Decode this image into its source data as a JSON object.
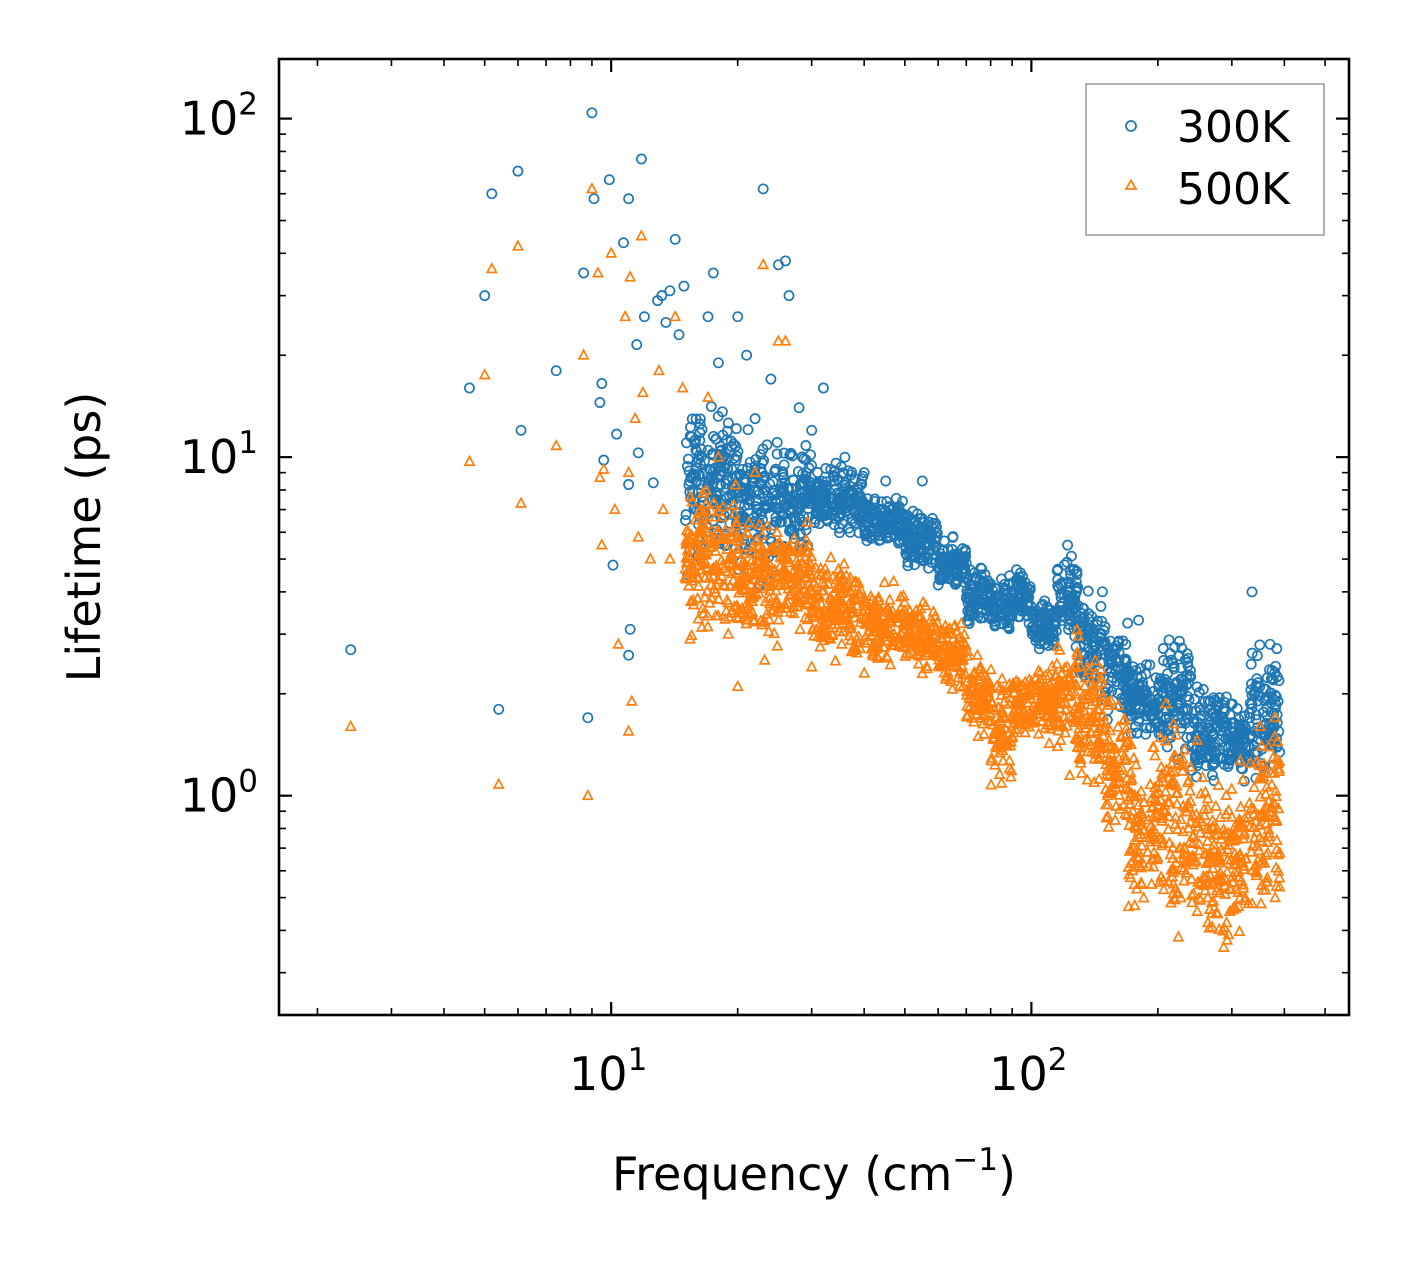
{
  "chart_data": {
    "type": "scatter",
    "title": "",
    "xlabel": {
      "base": "Frequency (cm",
      "sup": "−1",
      "tail": ")"
    },
    "ylabel": "Lifetime (ps)",
    "xscale": "log",
    "yscale": "log",
    "xlim": [
      1.62,
      570
    ],
    "ylim": [
      0.225,
      150
    ],
    "xticks": [
      {
        "value": 10,
        "base": "10",
        "exp": "1"
      },
      {
        "value": 100,
        "base": "10",
        "exp": "2"
      }
    ],
    "yticks": [
      {
        "value": 1,
        "base": "10",
        "exp": "0"
      },
      {
        "value": 10,
        "base": "10",
        "exp": "1"
      },
      {
        "value": 100,
        "base": "10",
        "exp": "2"
      }
    ],
    "legend": {
      "position": "top-right"
    },
    "series": [
      {
        "name": "300K",
        "color": "#1f77b4",
        "marker": "circle",
        "points": [
          [
            2.4,
            2.7
          ],
          [
            4.6,
            16
          ],
          [
            5.0,
            30
          ],
          [
            5.2,
            60
          ],
          [
            5.4,
            1.8
          ],
          [
            6.0,
            70
          ],
          [
            6.1,
            12
          ],
          [
            7.4,
            18
          ],
          [
            8.6,
            35
          ],
          [
            8.8,
            1.7
          ],
          [
            9.0,
            104
          ],
          [
            9.1,
            58
          ],
          [
            9.4,
            14.5
          ],
          [
            9.5,
            16.5
          ],
          [
            9.6,
            9.8
          ],
          [
            9.9,
            66
          ],
          [
            10.1,
            4.8
          ],
          [
            10.3,
            11.7
          ],
          [
            10.7,
            43
          ],
          [
            11.0,
            58
          ],
          [
            11.0,
            8.3
          ],
          [
            11.1,
            3.1
          ],
          [
            11.0,
            2.6
          ],
          [
            11.5,
            21.5
          ],
          [
            11.6,
            10.3
          ],
          [
            11.8,
            76
          ],
          [
            12.0,
            26
          ],
          [
            12.6,
            8.4
          ],
          [
            12.9,
            29
          ],
          [
            13.2,
            30
          ],
          [
            13.5,
            25
          ],
          [
            13.8,
            31
          ],
          [
            14.2,
            44
          ],
          [
            14.5,
            23
          ],
          [
            14.9,
            32
          ],
          [
            15.2,
            4.5
          ],
          [
            17.0,
            26
          ],
          [
            17.5,
            35
          ],
          [
            18.0,
            19
          ],
          [
            20.0,
            26
          ],
          [
            21.0,
            20
          ],
          [
            22.0,
            13
          ],
          [
            23.0,
            62
          ],
          [
            24.0,
            17
          ],
          [
            25.0,
            37
          ],
          [
            26.0,
            38
          ],
          [
            26.5,
            30
          ],
          [
            28.0,
            14
          ],
          [
            30.0,
            12
          ],
          [
            32.0,
            16
          ],
          [
            36.0,
            10
          ],
          [
            40.0,
            9
          ],
          [
            45.0,
            8.5
          ],
          [
            55.0,
            8.5
          ],
          [
            180,
            3.3
          ],
          [
            335,
            4.0
          ],
          [
            370,
            2.8
          ]
        ],
        "bands": [
          {
            "x": [
              15,
              20
            ],
            "y": [
              4.5,
              16
            ]
          },
          {
            "x": [
              20,
              25
            ],
            "y": [
              3.8,
              14
            ]
          },
          {
            "x": [
              25,
              30
            ],
            "y": [
              4.8,
              12
            ]
          },
          {
            "x": [
              30,
              40
            ],
            "y": [
              5.5,
              10
            ]
          },
          {
            "x": [
              40,
              50
            ],
            "y": [
              5.0,
              8
            ]
          },
          {
            "x": [
              50,
              60
            ],
            "y": [
              4.3,
              7.5
            ]
          },
          {
            "x": [
              60,
              70
            ],
            "y": [
              3.8,
              6.0
            ]
          },
          {
            "x": [
              70,
              80
            ],
            "y": [
              3.0,
              5.0
            ]
          },
          {
            "x": [
              80,
              90
            ],
            "y": [
              2.8,
              5.0
            ]
          },
          {
            "x": [
              90,
              100
            ],
            "y": [
              3.0,
              5.0
            ]
          },
          {
            "x": [
              100,
              115
            ],
            "y": [
              2.5,
              4.0
            ]
          },
          {
            "x": [
              115,
              130
            ],
            "y": [
              2.5,
              6.0
            ]
          },
          {
            "x": [
              130,
              150
            ],
            "y": [
              1.8,
              4.5
            ]
          },
          {
            "x": [
              150,
              170
            ],
            "y": [
              1.5,
              3.5
            ]
          },
          {
            "x": [
              170,
              200
            ],
            "y": [
              1.4,
              2.6
            ]
          },
          {
            "x": [
              200,
              240
            ],
            "y": [
              1.2,
              3.3
            ]
          },
          {
            "x": [
              240,
              300
            ],
            "y": [
              1.0,
              2.4
            ]
          },
          {
            "x": [
              300,
              330
            ],
            "y": [
              1.0,
              2.0
            ]
          },
          {
            "x": [
              330,
              390
            ],
            "y": [
              1.0,
              3.0
            ]
          }
        ]
      },
      {
        "name": "500K",
        "color": "#ff7f0e",
        "marker": "triangle",
        "points": [
          [
            2.4,
            1.6
          ],
          [
            4.6,
            9.7
          ],
          [
            5.0,
            17.5
          ],
          [
            5.2,
            36
          ],
          [
            5.4,
            1.08
          ],
          [
            6.0,
            42
          ],
          [
            6.1,
            7.3
          ],
          [
            7.4,
            10.8
          ],
          [
            8.6,
            20
          ],
          [
            8.8,
            1.0
          ],
          [
            9.0,
            62
          ],
          [
            9.3,
            35
          ],
          [
            9.4,
            8.7
          ],
          [
            9.5,
            5.5
          ],
          [
            9.6,
            9.2
          ],
          [
            10.0,
            40
          ],
          [
            10.2,
            7.0
          ],
          [
            10.4,
            2.8
          ],
          [
            10.8,
            26
          ],
          [
            11.0,
            9.0
          ],
          [
            11.0,
            1.55
          ],
          [
            11.1,
            34
          ],
          [
            11.2,
            1.9
          ],
          [
            11.4,
            13
          ],
          [
            11.6,
            5.8
          ],
          [
            11.8,
            45
          ],
          [
            11.9,
            15.5
          ],
          [
            12.4,
            5.0
          ],
          [
            13.0,
            18
          ],
          [
            13.3,
            7.0
          ],
          [
            13.8,
            5.0
          ],
          [
            14.2,
            26
          ],
          [
            14.8,
            16
          ],
          [
            15.4,
            2.9
          ],
          [
            17.0,
            15
          ],
          [
            18.0,
            10
          ],
          [
            19.0,
            3.0
          ],
          [
            20.0,
            2.1
          ],
          [
            22.0,
            9.0
          ],
          [
            23.0,
            37
          ],
          [
            25.0,
            22
          ],
          [
            26.0,
            22
          ],
          [
            27.0,
            4.0
          ],
          [
            30.0,
            2.4
          ],
          [
            35.0,
            3.5
          ],
          [
            40.0,
            2.3
          ],
          [
            380,
            1.7
          ]
        ],
        "bands": [
          {
            "x": [
              15,
              20
            ],
            "y": [
              2.6,
              9.5
            ]
          },
          {
            "x": [
              20,
              25
            ],
            "y": [
              2.3,
              8.0
            ]
          },
          {
            "x": [
              25,
              30
            ],
            "y": [
              2.8,
              7.0
            ]
          },
          {
            "x": [
              30,
              40
            ],
            "y": [
              2.3,
              5.5
            ]
          },
          {
            "x": [
              40,
              50
            ],
            "y": [
              2.2,
              4.5
            ]
          },
          {
            "x": [
              50,
              60
            ],
            "y": [
              2.2,
              4.0
            ]
          },
          {
            "x": [
              60,
              70
            ],
            "y": [
              1.9,
              3.6
            ]
          },
          {
            "x": [
              70,
              80
            ],
            "y": [
              1.4,
              2.8
            ]
          },
          {
            "x": [
              80,
              90
            ],
            "y": [
              1.0,
              2.5
            ]
          },
          {
            "x": [
              90,
              100
            ],
            "y": [
              1.3,
              2.5
            ]
          },
          {
            "x": [
              100,
              115
            ],
            "y": [
              1.4,
              2.6
            ]
          },
          {
            "x": [
              115,
              130
            ],
            "y": [
              1.1,
              3.3
            ]
          },
          {
            "x": [
              130,
              150
            ],
            "y": [
              0.9,
              3.0
            ]
          },
          {
            "x": [
              150,
              170
            ],
            "y": [
              0.65,
              2.3
            ]
          },
          {
            "x": [
              170,
              200
            ],
            "y": [
              0.38,
              1.6
            ]
          },
          {
            "x": [
              200,
              240
            ],
            "y": [
              0.32,
              2.5
            ]
          },
          {
            "x": [
              240,
              300
            ],
            "y": [
              0.28,
              1.5
            ]
          },
          {
            "x": [
              300,
              330
            ],
            "y": [
              0.32,
              1.3
            ]
          },
          {
            "x": [
              330,
              390
            ],
            "y": [
              0.38,
              2.0
            ]
          }
        ]
      }
    ]
  }
}
